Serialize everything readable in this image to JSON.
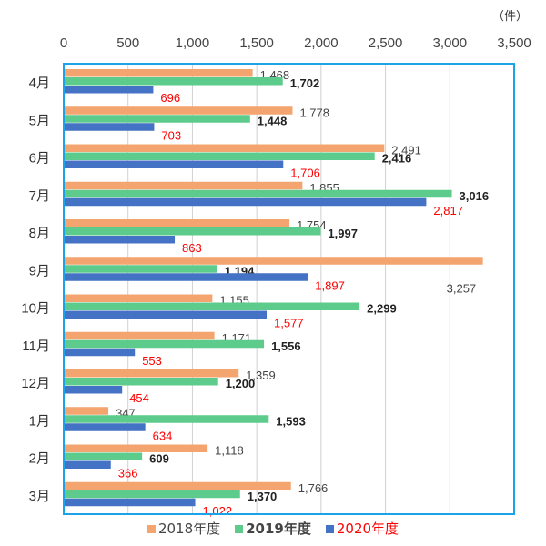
{
  "chart_data": {
    "type": "bar",
    "orientation": "horizontal",
    "unit": "（件）",
    "categories": [
      "4月",
      "5月",
      "6月",
      "7月",
      "8月",
      "9月",
      "10月",
      "11月",
      "12月",
      "1月",
      "2月",
      "3月"
    ],
    "xlim": [
      0,
      3500
    ],
    "xticks": [
      "0",
      "500",
      "1,000",
      "1,500",
      "2,000",
      "2,500",
      "3,000",
      "3,500"
    ],
    "grid": true,
    "legend_position": "bottom",
    "series": [
      {
        "name": "2018年度",
        "color": "#F4A46E",
        "label_color": "#444444",
        "values": [
          1468,
          1778,
          2491,
          1855,
          1754,
          3257,
          1155,
          1171,
          1359,
          347,
          1118,
          1766
        ],
        "labels": [
          "1,468",
          "1,778",
          "2,491",
          "1,855",
          "1,754",
          "3,257",
          "1,155",
          "1,171",
          "1,359",
          "347",
          "1,118",
          "1,766"
        ]
      },
      {
        "name": "2019年度",
        "color": "#5DCB8B",
        "label_color": "#222222",
        "values": [
          1702,
          1448,
          2416,
          3016,
          1997,
          1194,
          2299,
          1556,
          1200,
          1593,
          609,
          1370
        ],
        "labels": [
          "1,702",
          "1,448",
          "2,416",
          "3,016",
          "1,997",
          "1,194",
          "2,299",
          "1,556",
          "1,200",
          "1,593",
          "609",
          "1,370"
        ]
      },
      {
        "name": "2020年度",
        "color": "#4472C4",
        "label_color": "#FF0000",
        "values": [
          696,
          703,
          1706,
          2817,
          863,
          1897,
          1577,
          553,
          454,
          634,
          366,
          1022
        ],
        "labels": [
          "696",
          "703",
          "1,706",
          "2,817",
          "863",
          "1,897",
          "1,577",
          "553",
          "454",
          "634",
          "366",
          "1,022"
        ]
      }
    ]
  }
}
